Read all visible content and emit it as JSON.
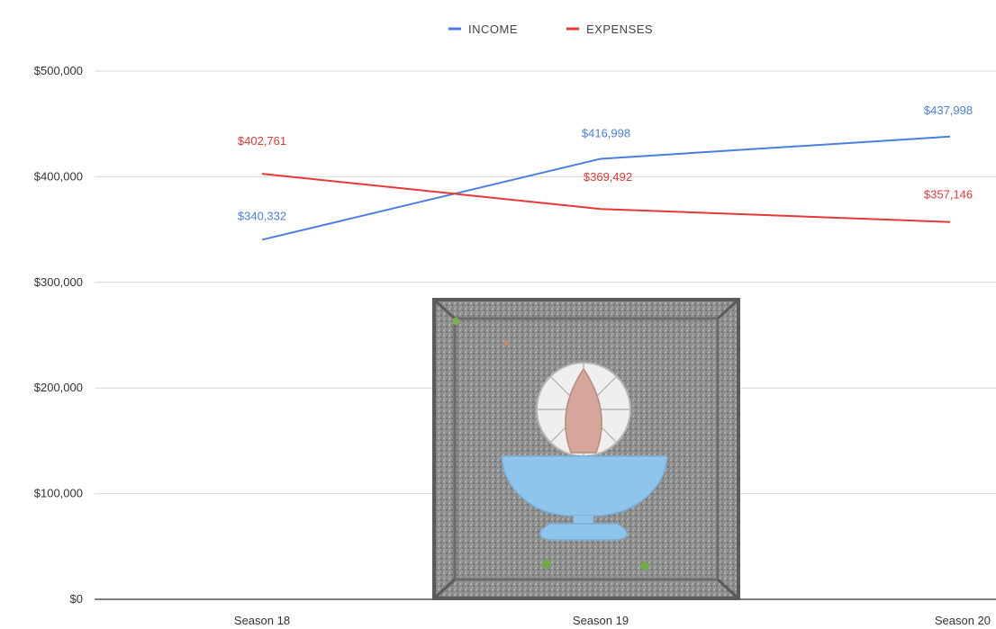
{
  "chart_data": {
    "type": "line",
    "categories": [
      "Season 18",
      "Season 19",
      "Season 20"
    ],
    "series": [
      {
        "name": "INCOME",
        "color": "#4a7fe0",
        "values": [
          340332,
          416998,
          437998
        ],
        "labels": [
          "$340,332",
          "$416,998",
          "$437,998"
        ]
      },
      {
        "name": "EXPENSES",
        "color": "#e53935",
        "values": [
          402761,
          369492,
          357146
        ],
        "labels": [
          "$402,761",
          "$369,492",
          "$357,146"
        ]
      }
    ],
    "ylim": [
      0,
      500000
    ],
    "yticks": [
      0,
      100000,
      200000,
      300000,
      400000,
      500000
    ],
    "ytick_labels": [
      "$0",
      "$100,000",
      "$200,000",
      "$300,000",
      "$400,000",
      "$500,000"
    ],
    "grid": true,
    "legend_position": "top-center"
  },
  "overlay_image": {
    "icon": "flaming-chalice-mosaic",
    "colors": {
      "stone": "#8f9090",
      "bowl": "#8fc3ea",
      "flame": "#d9a79b",
      "halo": "#f0f0f0"
    }
  }
}
